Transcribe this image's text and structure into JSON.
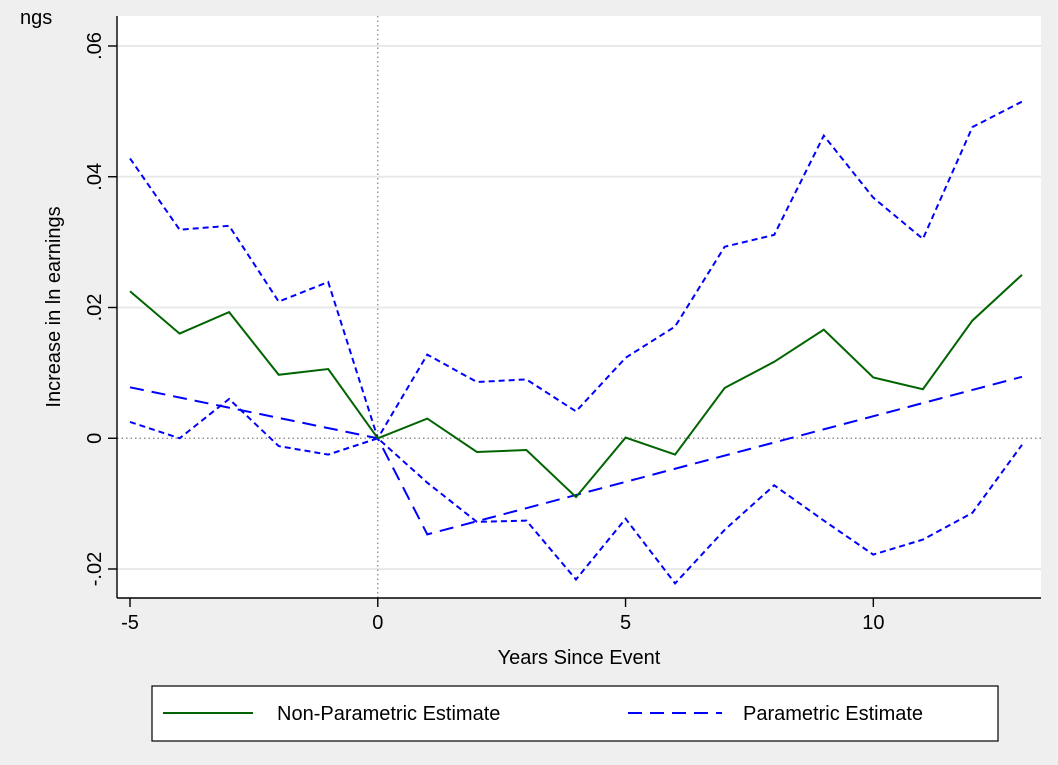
{
  "header": {
    "partial_title": "ngs"
  },
  "chart_data": {
    "type": "line",
    "xlabel": "Years Since Event",
    "ylabel": "Increase in ln earnings",
    "xlim": [
      -5,
      13
    ],
    "ylim": [
      -0.024,
      0.06
    ],
    "xticks": [
      -5,
      0,
      5,
      10
    ],
    "xtick_labels": [
      "-5",
      "0",
      "5",
      "10"
    ],
    "yticks": [
      -0.02,
      0,
      0.02,
      0.04,
      0.06
    ],
    "ytick_labels": [
      "-.02",
      "0",
      ".02",
      ".04",
      ".06"
    ],
    "grid": "horizontal",
    "reference_lines": {
      "x": 0,
      "y": 0
    },
    "legend_position": "bottom",
    "legend": [
      "Non-Parametric Estimate",
      "Parametric Estimate"
    ],
    "x": [
      -5,
      -4,
      -3,
      -2,
      -1,
      0,
      1,
      2,
      3,
      4,
      5,
      6,
      7,
      8,
      9,
      10,
      11,
      12,
      13
    ],
    "series": [
      {
        "name": "Non-Parametric Estimate",
        "color": "#006400",
        "style": "solid",
        "values": [
          0.0225,
          0.016,
          0.0193,
          0.0097,
          0.0106,
          0,
          0.003,
          -0.0021,
          -0.0018,
          -0.009,
          0.0001,
          -0.0025,
          0.0077,
          0.0117,
          0.0166,
          0.0093,
          0.0075,
          0.018,
          0.025
        ]
      },
      {
        "color": "#0000ff",
        "style": "dotted",
        "role": "upper bound",
        "values": [
          0.0428,
          0.0319,
          0.0325,
          0.0209,
          0.0239,
          0,
          0.0128,
          0.0086,
          0.009,
          0.0041,
          0.0123,
          0.0171,
          0.0293,
          0.0311,
          0.0463,
          0.0368,
          0.0305,
          0.0476,
          0.0515
        ]
      },
      {
        "color": "#0000ff",
        "style": "dotted",
        "role": "lower bound",
        "values": [
          0.0025,
          0.0,
          0.006,
          -0.0012,
          -0.0025,
          0,
          -0.0068,
          -0.0128,
          -0.0126,
          -0.0216,
          -0.0123,
          -0.0222,
          -0.014,
          -0.0072,
          -0.0126,
          -0.0178,
          -0.0155,
          -0.0114,
          -0.001
        ]
      },
      {
        "name": "Parametric Estimate",
        "color": "#0000ff",
        "style": "dashed",
        "x": [
          -5,
          0,
          1,
          13
        ],
        "values": [
          0.0078,
          0,
          -0.0147,
          0.0094
        ]
      }
    ]
  }
}
